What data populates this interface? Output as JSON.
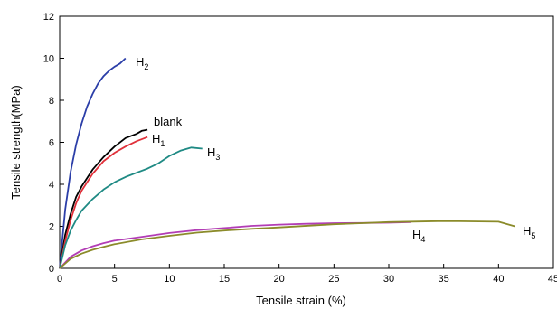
{
  "chart_data": {
    "type": "line",
    "title": "",
    "xlabel": "Tensile strain (%)",
    "ylabel": "Tensile strength(MPa)",
    "xlim": [
      0,
      45
    ],
    "ylim": [
      0,
      12
    ],
    "xticks": [
      0,
      5,
      10,
      15,
      20,
      25,
      30,
      35,
      40,
      45
    ],
    "yticks": [
      0,
      2,
      4,
      6,
      8,
      10,
      12
    ],
    "grid": false,
    "legend": "none",
    "series": [
      {
        "name": "H2",
        "label": {
          "base": "H",
          "sub": "2"
        },
        "color": "#2b3ea8",
        "x": [
          0,
          0.5,
          1,
          1.5,
          2,
          2.5,
          3,
          3.5,
          4,
          4.5,
          5,
          5.5,
          6
        ],
        "y": [
          0,
          2.8,
          4.6,
          5.9,
          6.9,
          7.7,
          8.3,
          8.8,
          9.15,
          9.4,
          9.6,
          9.75,
          10.0
        ]
      },
      {
        "name": "blank",
        "label": {
          "base": "blank",
          "sub": ""
        },
        "color": "#000000",
        "x": [
          0,
          0.5,
          1,
          1.5,
          2,
          3,
          4,
          5,
          6,
          7,
          7.5,
          8
        ],
        "y": [
          0,
          1.6,
          2.6,
          3.4,
          3.9,
          4.7,
          5.3,
          5.8,
          6.2,
          6.4,
          6.55,
          6.6
        ]
      },
      {
        "name": "H1",
        "label": {
          "base": "H",
          "sub": "1"
        },
        "color": "#e0303a",
        "x": [
          0,
          0.5,
          1,
          1.5,
          2,
          3,
          4,
          5,
          6,
          7,
          8
        ],
        "y": [
          0,
          1.3,
          2.3,
          3.1,
          3.7,
          4.5,
          5.1,
          5.5,
          5.8,
          6.05,
          6.25
        ]
      },
      {
        "name": "H3",
        "label": {
          "base": "H",
          "sub": "3"
        },
        "color": "#1f8a84",
        "x": [
          0,
          0.5,
          1,
          1.5,
          2,
          3,
          4,
          5,
          6,
          7,
          8,
          9,
          10,
          11,
          12,
          13
        ],
        "y": [
          0,
          1.1,
          1.8,
          2.3,
          2.75,
          3.3,
          3.75,
          4.1,
          4.35,
          4.55,
          4.75,
          5.0,
          5.35,
          5.6,
          5.75,
          5.7
        ]
      },
      {
        "name": "H4",
        "label": {
          "base": "H",
          "sub": "4"
        },
        "color": "#b23db5",
        "x": [
          0,
          1,
          2,
          3,
          4,
          5,
          7.5,
          10,
          12.5,
          15,
          17.5,
          20,
          22.5,
          25,
          27.5,
          30,
          32
        ],
        "y": [
          0,
          0.55,
          0.85,
          1.05,
          1.2,
          1.32,
          1.5,
          1.68,
          1.82,
          1.92,
          2.02,
          2.08,
          2.12,
          2.15,
          2.16,
          2.17,
          2.2
        ]
      },
      {
        "name": "H5",
        "label": {
          "base": "H",
          "sub": "5"
        },
        "color": "#8b8b2a",
        "x": [
          0,
          1,
          2,
          3,
          4,
          5,
          7.5,
          10,
          12.5,
          15,
          17.5,
          20,
          25,
          30,
          35,
          40,
          41.5
        ],
        "y": [
          0,
          0.45,
          0.7,
          0.88,
          1.02,
          1.15,
          1.38,
          1.55,
          1.7,
          1.8,
          1.88,
          1.95,
          2.1,
          2.2,
          2.25,
          2.22,
          2.0
        ]
      }
    ]
  }
}
